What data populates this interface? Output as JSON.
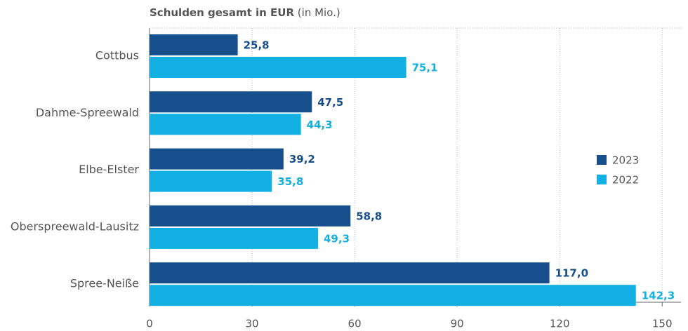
{
  "chart_data": {
    "type": "bar",
    "orientation": "horizontal",
    "title": "Schulden gesamt in EUR",
    "subtitle": "(in Mio.)",
    "categories": [
      "Cottbus",
      "Dahme-Spreewald",
      "Elbe-Elster",
      "Oberspreewald-Lausitz",
      "Spree-Neiße"
    ],
    "series": [
      {
        "name": "2023",
        "color": "#164f8c",
        "values": [
          25.8,
          47.5,
          39.2,
          58.8,
          117.0
        ],
        "value_labels": [
          "25,8",
          "47,5",
          "39,2",
          "58,8",
          "117,0"
        ]
      },
      {
        "name": "2022",
        "color": "#12b0e2",
        "values": [
          75.1,
          44.3,
          35.8,
          49.3,
          142.3
        ],
        "value_labels": [
          "75,1",
          "44,3",
          "35,8",
          "49,3",
          "142,3"
        ]
      }
    ],
    "xlim": [
      0,
      155.5
    ],
    "xticks": [
      0,
      30,
      60,
      90,
      120,
      150
    ],
    "grid": true,
    "legend": "right"
  }
}
